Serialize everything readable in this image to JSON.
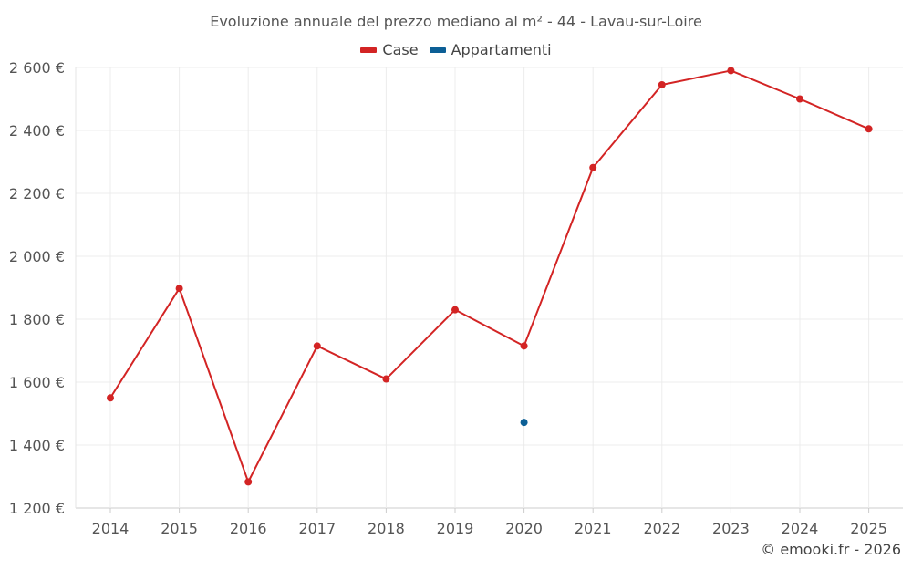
{
  "chart_data": {
    "type": "line",
    "title": "Evoluzione annuale del prezzo mediano al m² - 44 - Lavau-sur-Loire",
    "categories": [
      "2014",
      "2015",
      "2016",
      "2017",
      "2018",
      "2019",
      "2020",
      "2021",
      "2022",
      "2023",
      "2024",
      "2025"
    ],
    "series": [
      {
        "name": "Case",
        "color": "#d32424",
        "values": [
          1550,
          1898,
          1283,
          1715,
          1610,
          1830,
          1715,
          2282,
          2545,
          2590,
          2500,
          2405
        ]
      },
      {
        "name": "Appartamenti",
        "color": "#0c5f96",
        "values": [
          null,
          null,
          null,
          null,
          null,
          null,
          1472,
          null,
          null,
          null,
          null,
          null
        ]
      }
    ],
    "ylim": [
      1200,
      2600
    ],
    "yticks": [
      1200,
      1400,
      1600,
      1800,
      2000,
      2200,
      2400,
      2600
    ],
    "ytick_labels": [
      "1 200 €",
      "1 400 €",
      "1 600 €",
      "1 800 €",
      "2 000 €",
      "2 200 €",
      "2 400 €",
      "2 600 €"
    ],
    "grid": true,
    "legend_position": "top-center"
  },
  "legend": {
    "case_label": "Case",
    "appartamenti_label": "Appartamenti"
  },
  "credit": "© emooki.fr - 2026"
}
